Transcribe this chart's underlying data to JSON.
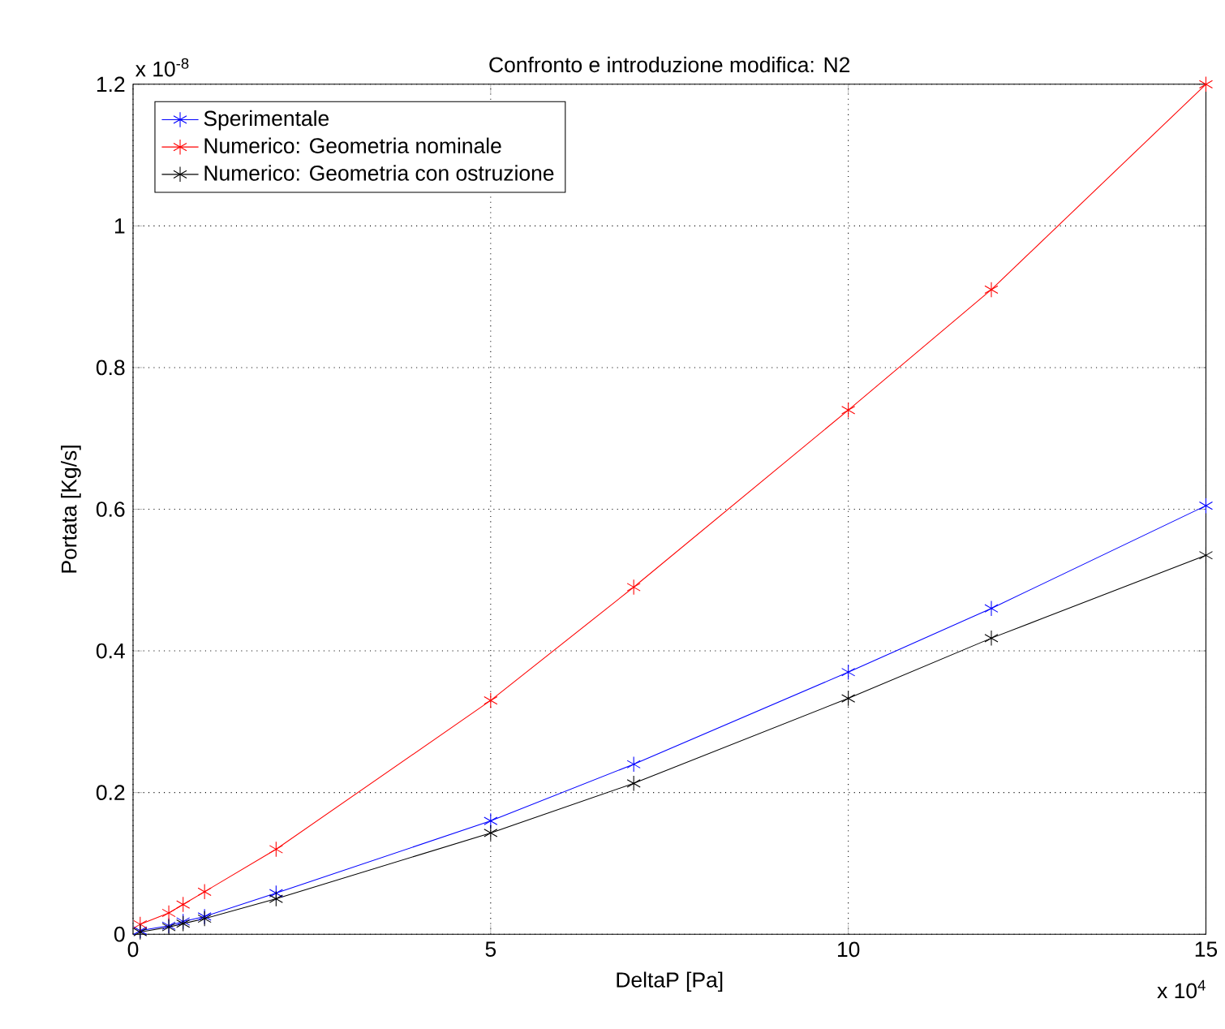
{
  "chart_data": {
    "type": "line",
    "title": "Confronto e introduzione modifica: N2",
    "xlabel": "DeltaP [Pa]",
    "ylabel": "Portata [Kg/s]",
    "annotations": [
      "x 10$^{-8}$",
      "x 10$^{4}$"
    ],
    "x": [
      0.1,
      0.5,
      0.7,
      1,
      2,
      5,
      7,
      10,
      12,
      15
    ],
    "series": [
      {
        "name": "Sperimentale",
        "color": "#0000ff",
        "values": [
          0.005,
          0.012,
          0.018,
          0.025,
          0.058,
          0.16,
          0.24,
          0.37,
          0.46,
          0.605
        ]
      },
      {
        "name": "Numerico: Geometria nominale",
        "color": "#ff0000",
        "values": [
          0.014,
          0.03,
          0.042,
          0.06,
          0.12,
          0.33,
          0.49,
          0.74,
          0.91,
          1.2
        ]
      },
      {
        "name": "Numerico: Geometria con ostruzione",
        "color": "#000000",
        "values": [
          0.003,
          0.01,
          0.015,
          0.022,
          0.05,
          0.143,
          0.213,
          0.333,
          0.418,
          0.535
        ]
      }
    ],
    "xlim": [
      0,
      15
    ],
    "ylim": [
      0,
      1.2
    ],
    "xticks": [
      0,
      5,
      10,
      15
    ],
    "yticks": [
      0,
      0.2,
      0.4,
      0.6,
      0.8,
      1,
      1.2
    ],
    "grid": true,
    "legend": "top left",
    "marker": "cross",
    "line_style": "solid"
  }
}
